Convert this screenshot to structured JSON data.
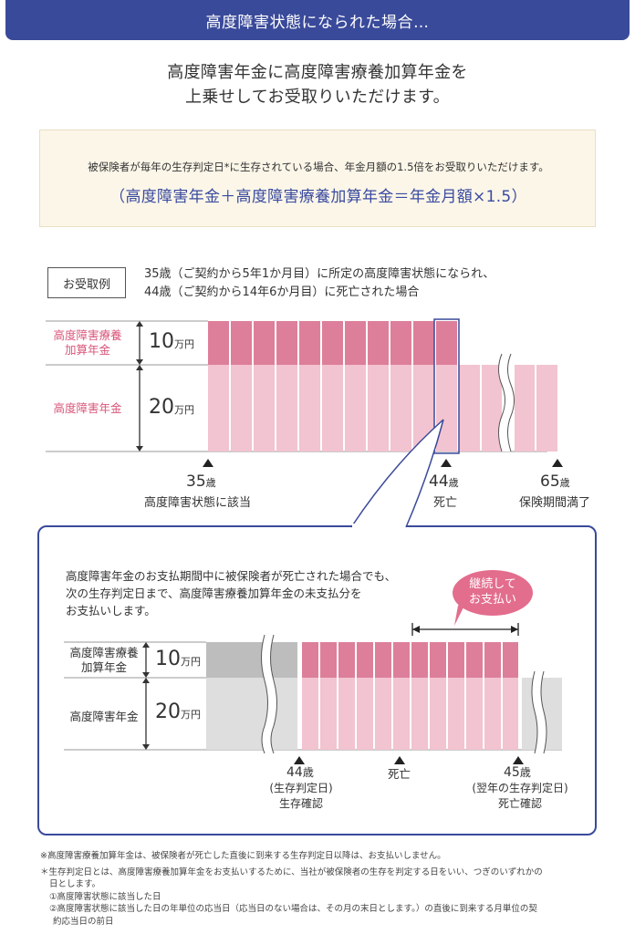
{
  "header": {
    "title": "高度障害状態になられた場合…"
  },
  "lead": {
    "line1": "高度障害年金に高度障害療養加算年金を",
    "line2": "上乗せしてお受取りいただけます。"
  },
  "note": {
    "description": "被保険者が毎年の生存判定日*に生存されている場合、年金月額の1.5倍をお受取りいただけます。",
    "formula": "（高度障害年金＋高度障害療養加算年金＝年金月額×1.5）"
  },
  "example": {
    "label": "お受取例",
    "line1": "35歳（ご契約から5年1か月目）に所定の高度障害状態になられ、",
    "line2": "44歳（ご契約から14年6か月目）に死亡された場合"
  },
  "chart1": {
    "addon_label_1": "高度障害療養",
    "addon_label_2": "加算年金",
    "addon_amount": "10",
    "base_label": "高度障害年金",
    "base_amount": "20",
    "unit": "万円",
    "age_start": "35",
    "age_death": "44",
    "age_end": "65",
    "age_suffix": "歳",
    "caption_start": "高度障害状態に該当",
    "caption_death": "死亡",
    "caption_end": "保険期間満了"
  },
  "popup": {
    "line1": "高度障害年金のお支払期間中に被保険者が死亡された場合でも、",
    "line2": "次の生存判定日まで、高度障害療養加算年金の未支払分を",
    "line3": "お支払いします。",
    "bubble_1": "継続して",
    "bubble_2": "お支払い",
    "addon_label_1": "高度障害療養",
    "addon_label_2": "加算年金",
    "addon_amount": "10",
    "base_label": "高度障害年金",
    "base_amount": "20",
    "unit": "万円",
    "age_left": "44",
    "age_left_suffix": "歳",
    "caption_left_1": "(生存判定日)",
    "caption_left_2": "生存確認",
    "caption_mid": "死亡",
    "age_right": "45",
    "age_right_suffix": "歳",
    "caption_right_1": "(翌年の生存判定日)",
    "caption_right_2": "死亡確認"
  },
  "footnotes": {
    "n1": "※高度障害療養加算年金は、被保険者が死亡した直後に到来する生存判定日以降は、お支払いしません。",
    "n2a": "＊生存判定日とは、高度障害療養加算年金をお支払いするために、当社が被保険者の生存を判定する日をいい、つぎのいずれかの",
    "n2b": "日とします。",
    "n3": "①高度障害状態に該当した日",
    "n4a": "②高度障害状態に該当した日の年単位の応当日（応当日のない場合は、その月の末日とします。）の直後に到来する月単位の契",
    "n4b": "約応当日の前日"
  },
  "colors": {
    "header": "#3a4a9a",
    "pink_dark": "#dd7f9a",
    "pink_light": "#f2c3d0",
    "grey_dark": "#bdbdbd",
    "grey_light": "#dedede",
    "label_pink": "#d9567a"
  }
}
